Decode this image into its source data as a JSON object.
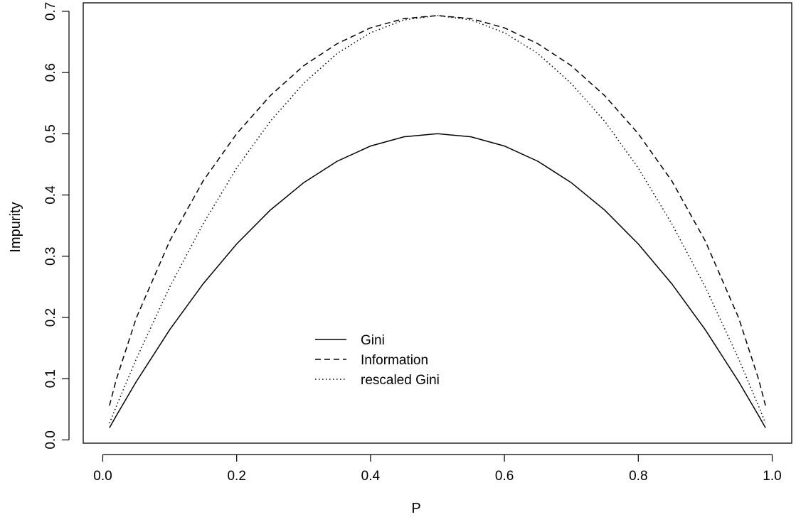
{
  "chart_data": {
    "type": "line",
    "title": "",
    "xlabel": "P",
    "ylabel": "Impurity",
    "xlim": [
      -0.0292,
      1.0292
    ],
    "ylim": [
      -0.0053,
      0.7138
    ],
    "xticks": [
      0.0,
      0.2,
      0.4,
      0.6,
      0.8,
      1.0
    ],
    "xtick_labels": [
      "0.0",
      "0.2",
      "0.4",
      "0.6",
      "0.8",
      "1.0"
    ],
    "yticks": [
      0.0,
      0.1,
      0.2,
      0.3,
      0.4,
      0.5,
      0.6,
      0.7
    ],
    "ytick_labels": [
      "0.0",
      "0.1",
      "0.2",
      "0.3",
      "0.4",
      "0.5",
      "0.6",
      "0.7"
    ],
    "grid": false,
    "legend_position": "inside-bottom-center",
    "x": [
      0.01,
      0.02,
      0.05,
      0.1,
      0.15,
      0.2,
      0.25,
      0.3,
      0.35,
      0.4,
      0.45,
      0.5,
      0.55,
      0.6,
      0.65,
      0.7,
      0.75,
      0.8,
      0.85,
      0.9,
      0.95,
      0.98,
      0.99
    ],
    "series": [
      {
        "name": "Gini",
        "style": "solid",
        "color": "#000000",
        "values": [
          0.0198,
          0.0392,
          0.095,
          0.18,
          0.255,
          0.32,
          0.375,
          0.42,
          0.455,
          0.48,
          0.495,
          0.5,
          0.495,
          0.48,
          0.455,
          0.42,
          0.375,
          0.32,
          0.255,
          0.18,
          0.095,
          0.0392,
          0.0198
        ]
      },
      {
        "name": "Information",
        "style": "dashed",
        "color": "#000000",
        "values": [
          0.056,
          0.098,
          0.199,
          0.325,
          0.423,
          0.5,
          0.562,
          0.611,
          0.647,
          0.673,
          0.688,
          0.693,
          0.688,
          0.673,
          0.647,
          0.611,
          0.562,
          0.5,
          0.423,
          0.325,
          0.199,
          0.098,
          0.056
        ]
      },
      {
        "name": "rescaled Gini",
        "style": "dotted",
        "color": "#000000",
        "values": [
          0.0274,
          0.0543,
          0.132,
          0.25,
          0.353,
          0.444,
          0.52,
          0.582,
          0.631,
          0.665,
          0.686,
          0.693,
          0.686,
          0.665,
          0.631,
          0.582,
          0.52,
          0.444,
          0.353,
          0.25,
          0.132,
          0.0543,
          0.0274
        ]
      }
    ]
  }
}
